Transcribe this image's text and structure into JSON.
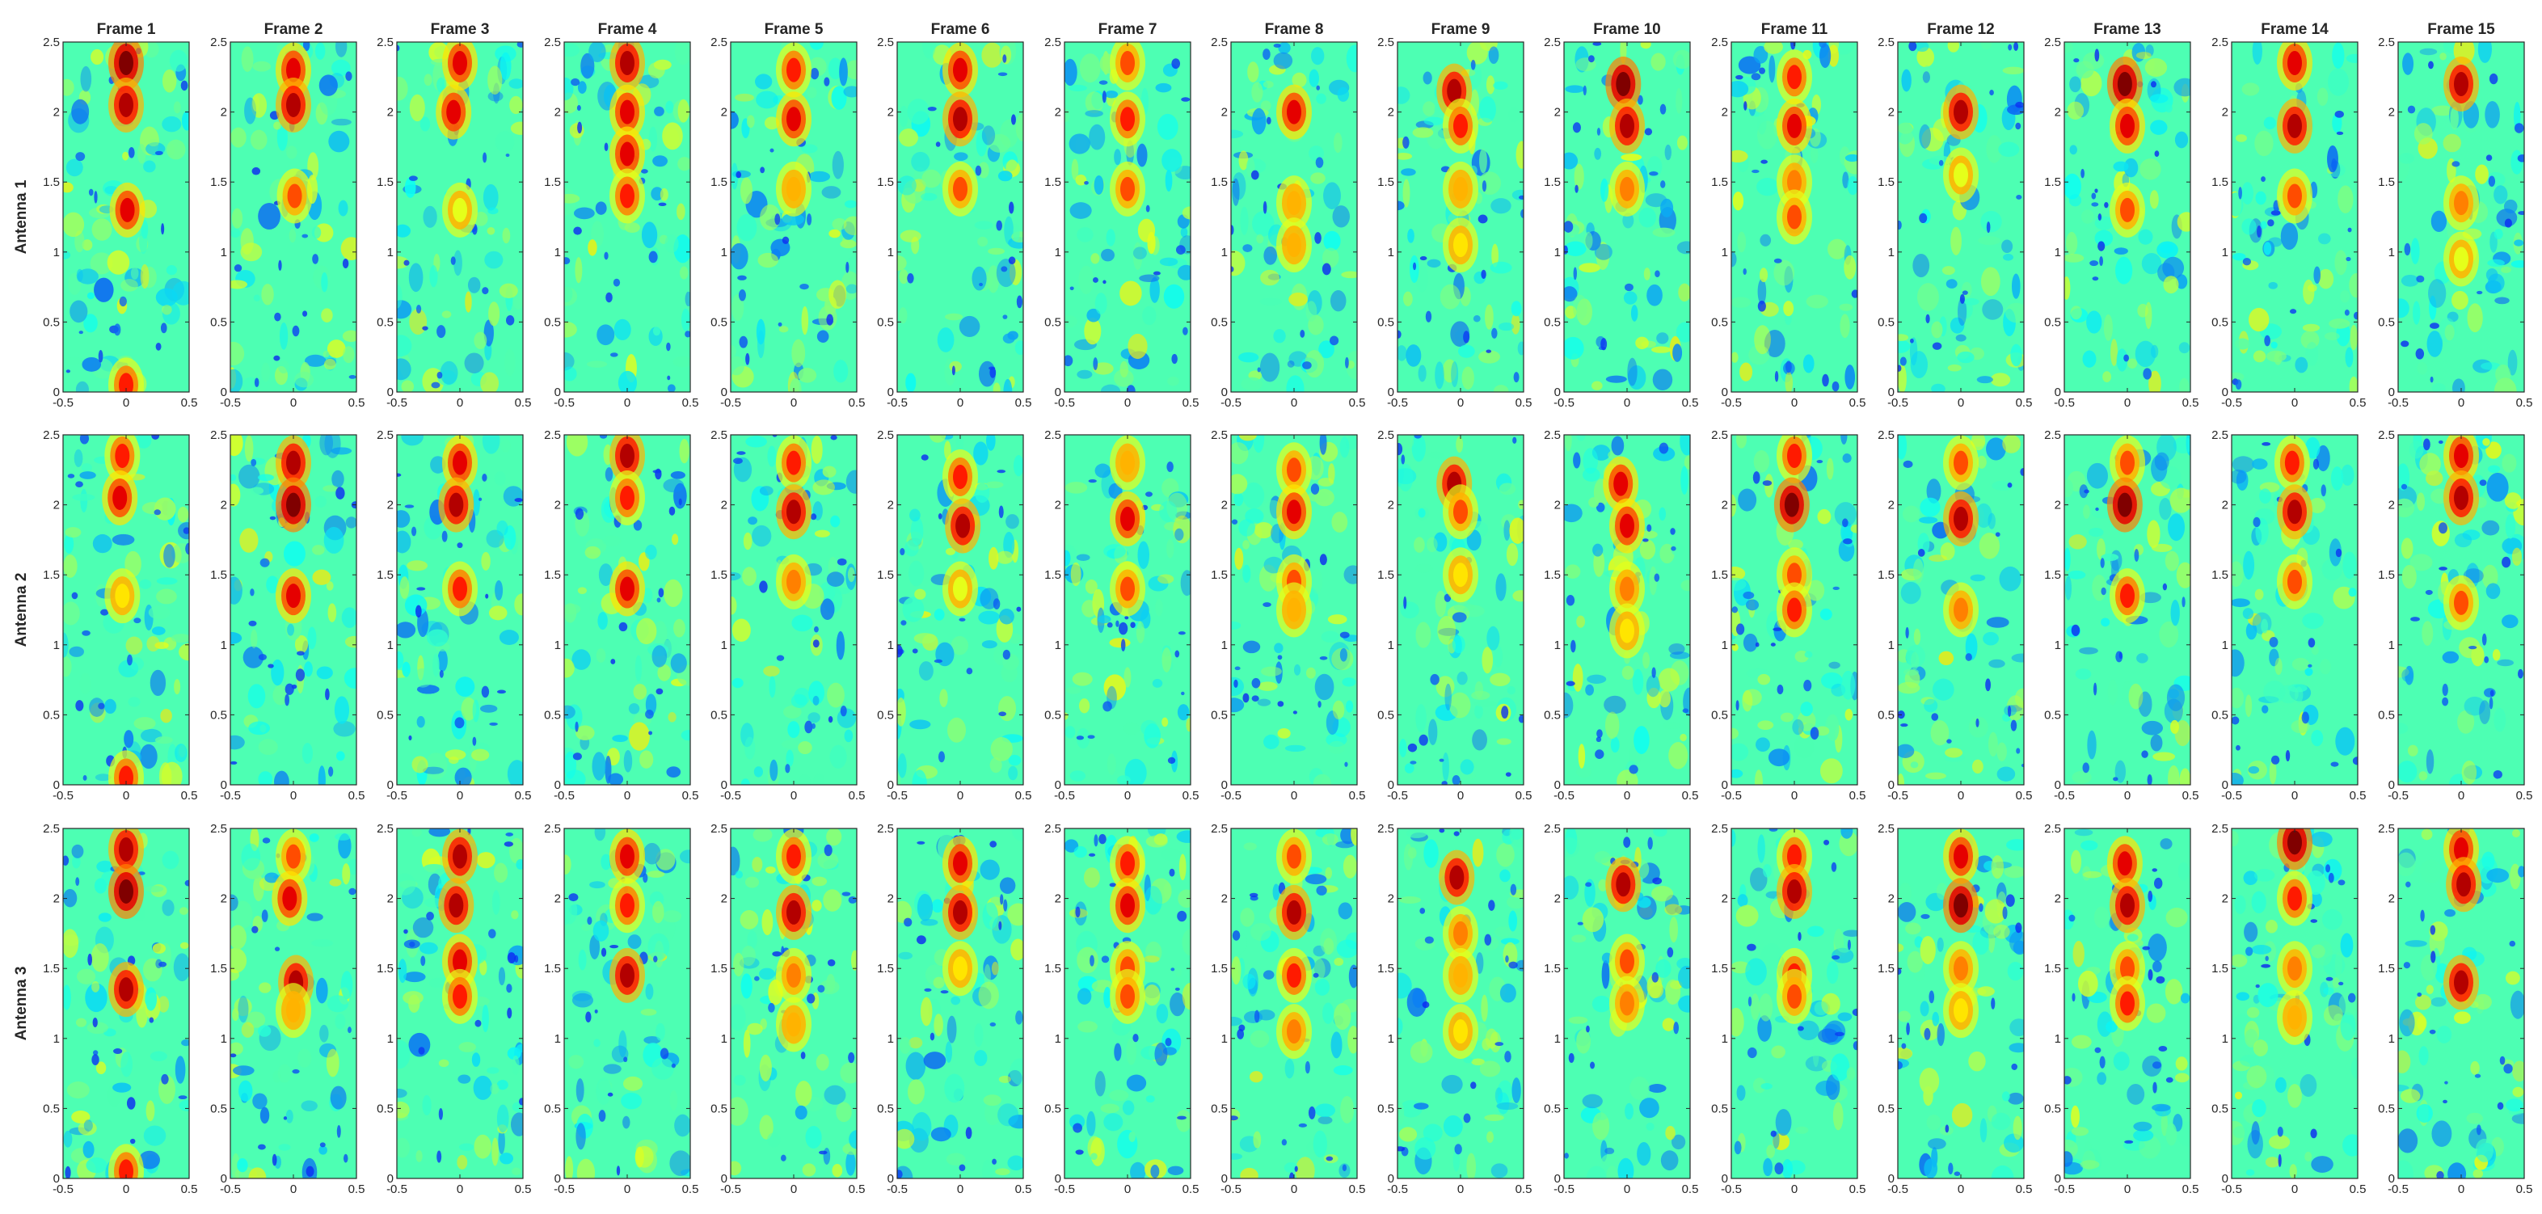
{
  "chart_data": {
    "type": "heatmap",
    "colormap": "jet",
    "grid": false,
    "columns": [
      "Frame 1",
      "Frame 2",
      "Frame 3",
      "Frame 4",
      "Frame 5",
      "Frame 6",
      "Frame 7",
      "Frame 8",
      "Frame 9",
      "Frame 10",
      "Frame 11",
      "Frame 12",
      "Frame 13",
      "Frame 14",
      "Frame 15"
    ],
    "rows": [
      "Antenna 1",
      "Antenna 2",
      "Antenna 3"
    ],
    "xlim": [
      -0.5,
      0.5
    ],
    "ylim": [
      0,
      2.5
    ],
    "xticks": [
      -0.5,
      0,
      0.5
    ],
    "xtick_labels": [
      "-0.5",
      "0",
      "0.5"
    ],
    "yticks": [
      0,
      0.5,
      1,
      1.5,
      2,
      2.5
    ],
    "ytick_labels": [
      "0",
      "0.5",
      "1",
      "1.5",
      "2",
      "2.5"
    ],
    "value_scale": "normalized intensity 0-1",
    "background_intensity": 0.45,
    "panels": [
      [
        {
          "hotspots": [
            {
              "x": 0,
              "y": 2.35,
              "v": 1.0
            },
            {
              "x": 0,
              "y": 2.05,
              "v": 0.95
            },
            {
              "x": 0.01,
              "y": 1.3,
              "v": 0.9
            },
            {
              "x": 0,
              "y": 0.05,
              "v": 0.85
            }
          ]
        },
        {
          "hotspots": [
            {
              "x": 0,
              "y": 2.3,
              "v": 0.9
            },
            {
              "x": 0,
              "y": 2.05,
              "v": 0.95
            },
            {
              "x": 0.01,
              "y": 1.4,
              "v": 0.8
            }
          ]
        },
        {
          "hotspots": [
            {
              "x": 0,
              "y": 2.35,
              "v": 0.9
            },
            {
              "x": -0.05,
              "y": 2.0,
              "v": 0.9
            },
            {
              "x": 0,
              "y": 1.3,
              "v": 0.6
            }
          ]
        },
        {
          "hotspots": [
            {
              "x": 0,
              "y": 2.35,
              "v": 0.95
            },
            {
              "x": 0,
              "y": 2.0,
              "v": 0.9
            },
            {
              "x": 0,
              "y": 1.7,
              "v": 0.9
            },
            {
              "x": 0,
              "y": 1.4,
              "v": 0.85
            }
          ]
        },
        {
          "hotspots": [
            {
              "x": 0,
              "y": 2.3,
              "v": 0.85
            },
            {
              "x": 0,
              "y": 1.95,
              "v": 0.9
            },
            {
              "x": 0,
              "y": 1.45,
              "v": 0.7
            }
          ]
        },
        {
          "hotspots": [
            {
              "x": 0,
              "y": 2.3,
              "v": 0.9
            },
            {
              "x": 0,
              "y": 1.95,
              "v": 0.95
            },
            {
              "x": 0,
              "y": 1.45,
              "v": 0.8
            }
          ]
        },
        {
          "hotspots": [
            {
              "x": 0,
              "y": 2.35,
              "v": 0.8
            },
            {
              "x": 0,
              "y": 1.95,
              "v": 0.85
            },
            {
              "x": 0,
              "y": 1.45,
              "v": 0.8
            }
          ]
        },
        {
          "hotspots": [
            {
              "x": 0,
              "y": 2.0,
              "v": 0.9
            },
            {
              "x": 0,
              "y": 1.35,
              "v": 0.7
            },
            {
              "x": 0,
              "y": 1.05,
              "v": 0.7
            }
          ]
        },
        {
          "hotspots": [
            {
              "x": -0.05,
              "y": 2.15,
              "v": 0.95
            },
            {
              "x": 0,
              "y": 1.9,
              "v": 0.85
            },
            {
              "x": 0,
              "y": 1.45,
              "v": 0.7
            },
            {
              "x": 0,
              "y": 1.05,
              "v": 0.65
            }
          ]
        },
        {
          "hotspots": [
            {
              "x": -0.03,
              "y": 2.2,
              "v": 1.0
            },
            {
              "x": 0,
              "y": 1.9,
              "v": 0.95
            },
            {
              "x": 0,
              "y": 1.45,
              "v": 0.75
            }
          ]
        },
        {
          "hotspots": [
            {
              "x": 0,
              "y": 2.25,
              "v": 0.85
            },
            {
              "x": 0,
              "y": 1.9,
              "v": 0.9
            },
            {
              "x": 0,
              "y": 1.5,
              "v": 0.75
            },
            {
              "x": 0,
              "y": 1.25,
              "v": 0.8
            }
          ]
        },
        {
          "hotspots": [
            {
              "x": 0,
              "y": 2.0,
              "v": 0.95
            },
            {
              "x": 0,
              "y": 1.55,
              "v": 0.6
            }
          ]
        },
        {
          "hotspots": [
            {
              "x": -0.02,
              "y": 2.2,
              "v": 1.0
            },
            {
              "x": 0,
              "y": 1.9,
              "v": 0.9
            },
            {
              "x": 0,
              "y": 1.3,
              "v": 0.8
            }
          ]
        },
        {
          "hotspots": [
            {
              "x": 0,
              "y": 2.35,
              "v": 0.9
            },
            {
              "x": 0,
              "y": 1.9,
              "v": 0.95
            },
            {
              "x": 0,
              "y": 1.4,
              "v": 0.8
            }
          ]
        },
        {
          "hotspots": [
            {
              "x": 0,
              "y": 2.2,
              "v": 0.95
            },
            {
              "x": 0,
              "y": 1.35,
              "v": 0.75
            },
            {
              "x": 0,
              "y": 0.95,
              "v": 0.6
            }
          ]
        }
      ],
      [
        {
          "hotspots": [
            {
              "x": -0.03,
              "y": 2.35,
              "v": 0.85
            },
            {
              "x": -0.05,
              "y": 2.05,
              "v": 0.9
            },
            {
              "x": -0.03,
              "y": 1.35,
              "v": 0.65
            },
            {
              "x": 0,
              "y": 0.05,
              "v": 0.85
            }
          ]
        },
        {
          "hotspots": [
            {
              "x": 0,
              "y": 2.3,
              "v": 0.95
            },
            {
              "x": 0,
              "y": 2.0,
              "v": 1.0
            },
            {
              "x": 0,
              "y": 1.35,
              "v": 0.9
            }
          ]
        },
        {
          "hotspots": [
            {
              "x": 0,
              "y": 2.3,
              "v": 0.9
            },
            {
              "x": -0.03,
              "y": 2.0,
              "v": 0.95
            },
            {
              "x": 0,
              "y": 1.4,
              "v": 0.85
            }
          ]
        },
        {
          "hotspots": [
            {
              "x": 0,
              "y": 2.35,
              "v": 0.95
            },
            {
              "x": 0,
              "y": 2.05,
              "v": 0.85
            },
            {
              "x": 0,
              "y": 1.4,
              "v": 0.9
            }
          ]
        },
        {
          "hotspots": [
            {
              "x": 0,
              "y": 2.3,
              "v": 0.85
            },
            {
              "x": 0,
              "y": 1.95,
              "v": 0.95
            },
            {
              "x": 0,
              "y": 1.45,
              "v": 0.75
            }
          ]
        },
        {
          "hotspots": [
            {
              "x": 0,
              "y": 2.2,
              "v": 0.85
            },
            {
              "x": 0.02,
              "y": 1.85,
              "v": 0.95
            },
            {
              "x": 0,
              "y": 1.4,
              "v": 0.6
            }
          ]
        },
        {
          "hotspots": [
            {
              "x": 0,
              "y": 2.3,
              "v": 0.7
            },
            {
              "x": 0,
              "y": 1.9,
              "v": 0.9
            },
            {
              "x": 0,
              "y": 1.4,
              "v": 0.8
            }
          ]
        },
        {
          "hotspots": [
            {
              "x": 0,
              "y": 2.25,
              "v": 0.8
            },
            {
              "x": 0,
              "y": 1.95,
              "v": 0.9
            },
            {
              "x": 0,
              "y": 1.45,
              "v": 0.8
            },
            {
              "x": 0,
              "y": 1.25,
              "v": 0.7
            }
          ]
        },
        {
          "hotspots": [
            {
              "x": -0.05,
              "y": 2.15,
              "v": 0.95
            },
            {
              "x": 0,
              "y": 1.95,
              "v": 0.8
            },
            {
              "x": 0,
              "y": 1.5,
              "v": 0.65
            }
          ]
        },
        {
          "hotspots": [
            {
              "x": -0.05,
              "y": 2.15,
              "v": 0.9
            },
            {
              "x": 0,
              "y": 1.85,
              "v": 0.9
            },
            {
              "x": 0,
              "y": 1.4,
              "v": 0.75
            },
            {
              "x": 0,
              "y": 1.1,
              "v": 0.65
            }
          ]
        },
        {
          "hotspots": [
            {
              "x": 0,
              "y": 2.35,
              "v": 0.85
            },
            {
              "x": -0.02,
              "y": 2.0,
              "v": 1.0
            },
            {
              "x": 0,
              "y": 1.5,
              "v": 0.8
            },
            {
              "x": 0,
              "y": 1.25,
              "v": 0.85
            }
          ]
        },
        {
          "hotspots": [
            {
              "x": 0,
              "y": 2.3,
              "v": 0.8
            },
            {
              "x": 0,
              "y": 1.9,
              "v": 0.95
            },
            {
              "x": 0,
              "y": 1.25,
              "v": 0.75
            }
          ]
        },
        {
          "hotspots": [
            {
              "x": 0,
              "y": 2.3,
              "v": 0.8
            },
            {
              "x": -0.02,
              "y": 2.0,
              "v": 1.0
            },
            {
              "x": 0,
              "y": 1.35,
              "v": 0.85
            }
          ]
        },
        {
          "hotspots": [
            {
              "x": -0.02,
              "y": 2.3,
              "v": 0.85
            },
            {
              "x": 0,
              "y": 1.95,
              "v": 0.95
            },
            {
              "x": 0,
              "y": 1.45,
              "v": 0.8
            }
          ]
        },
        {
          "hotspots": [
            {
              "x": 0,
              "y": 2.35,
              "v": 0.9
            },
            {
              "x": 0,
              "y": 2.05,
              "v": 0.95
            },
            {
              "x": 0,
              "y": 1.3,
              "v": 0.8
            }
          ]
        }
      ],
      [
        {
          "hotspots": [
            {
              "x": 0,
              "y": 2.35,
              "v": 0.95
            },
            {
              "x": 0,
              "y": 2.05,
              "v": 1.0
            },
            {
              "x": 0,
              "y": 1.35,
              "v": 0.95
            },
            {
              "x": 0,
              "y": 0.05,
              "v": 0.85
            }
          ]
        },
        {
          "hotspots": [
            {
              "x": 0,
              "y": 2.3,
              "v": 0.8
            },
            {
              "x": -0.03,
              "y": 2.0,
              "v": 0.9
            },
            {
              "x": 0.02,
              "y": 1.4,
              "v": 0.95
            },
            {
              "x": 0,
              "y": 1.2,
              "v": 0.7
            }
          ]
        },
        {
          "hotspots": [
            {
              "x": 0,
              "y": 2.3,
              "v": 0.95
            },
            {
              "x": -0.03,
              "y": 1.95,
              "v": 0.95
            },
            {
              "x": 0,
              "y": 1.55,
              "v": 0.9
            },
            {
              "x": 0,
              "y": 1.3,
              "v": 0.85
            }
          ]
        },
        {
          "hotspots": [
            {
              "x": 0,
              "y": 2.3,
              "v": 0.9
            },
            {
              "x": 0,
              "y": 1.95,
              "v": 0.85
            },
            {
              "x": 0,
              "y": 1.45,
              "v": 0.95
            }
          ]
        },
        {
          "hotspots": [
            {
              "x": 0,
              "y": 2.3,
              "v": 0.85
            },
            {
              "x": 0,
              "y": 1.9,
              "v": 0.95
            },
            {
              "x": 0,
              "y": 1.45,
              "v": 0.75
            },
            {
              "x": 0,
              "y": 1.1,
              "v": 0.7
            }
          ]
        },
        {
          "hotspots": [
            {
              "x": 0,
              "y": 2.25,
              "v": 0.9
            },
            {
              "x": 0,
              "y": 1.9,
              "v": 0.95
            },
            {
              "x": 0,
              "y": 1.5,
              "v": 0.65
            }
          ]
        },
        {
          "hotspots": [
            {
              "x": 0,
              "y": 2.25,
              "v": 0.85
            },
            {
              "x": 0,
              "y": 1.95,
              "v": 0.9
            },
            {
              "x": 0,
              "y": 1.5,
              "v": 0.8
            },
            {
              "x": 0,
              "y": 1.3,
              "v": 0.8
            }
          ]
        },
        {
          "hotspots": [
            {
              "x": 0,
              "y": 2.3,
              "v": 0.8
            },
            {
              "x": 0,
              "y": 1.9,
              "v": 0.95
            },
            {
              "x": 0,
              "y": 1.45,
              "v": 0.85
            },
            {
              "x": 0,
              "y": 1.05,
              "v": 0.75
            }
          ]
        },
        {
          "hotspots": [
            {
              "x": -0.03,
              "y": 2.15,
              "v": 0.95
            },
            {
              "x": 0,
              "y": 1.75,
              "v": 0.75
            },
            {
              "x": 0,
              "y": 1.45,
              "v": 0.7
            },
            {
              "x": 0,
              "y": 1.05,
              "v": 0.65
            }
          ]
        },
        {
          "hotspots": [
            {
              "x": -0.03,
              "y": 2.1,
              "v": 0.95
            },
            {
              "x": 0,
              "y": 1.55,
              "v": 0.8
            },
            {
              "x": 0,
              "y": 1.25,
              "v": 0.75
            }
          ]
        },
        {
          "hotspots": [
            {
              "x": 0,
              "y": 2.3,
              "v": 0.85
            },
            {
              "x": 0,
              "y": 2.05,
              "v": 0.95
            },
            {
              "x": 0,
              "y": 1.45,
              "v": 0.85
            },
            {
              "x": 0,
              "y": 1.3,
              "v": 0.8
            }
          ]
        },
        {
          "hotspots": [
            {
              "x": 0,
              "y": 2.3,
              "v": 0.9
            },
            {
              "x": 0,
              "y": 1.95,
              "v": 1.0
            },
            {
              "x": 0,
              "y": 1.5,
              "v": 0.75
            },
            {
              "x": 0,
              "y": 1.2,
              "v": 0.65
            }
          ]
        },
        {
          "hotspots": [
            {
              "x": -0.02,
              "y": 2.25,
              "v": 0.9
            },
            {
              "x": 0,
              "y": 1.95,
              "v": 0.95
            },
            {
              "x": 0,
              "y": 1.5,
              "v": 0.8
            },
            {
              "x": 0,
              "y": 1.25,
              "v": 0.85
            }
          ]
        },
        {
          "hotspots": [
            {
              "x": 0,
              "y": 2.4,
              "v": 1.0
            },
            {
              "x": 0,
              "y": 2.0,
              "v": 0.85
            },
            {
              "x": 0,
              "y": 1.5,
              "v": 0.75
            },
            {
              "x": 0,
              "y": 1.15,
              "v": 0.7
            }
          ]
        },
        {
          "hotspots": [
            {
              "x": 0,
              "y": 2.35,
              "v": 0.9
            },
            {
              "x": 0.02,
              "y": 2.1,
              "v": 0.95
            },
            {
              "x": 0,
              "y": 1.4,
              "v": 0.95
            }
          ]
        }
      ]
    ]
  }
}
